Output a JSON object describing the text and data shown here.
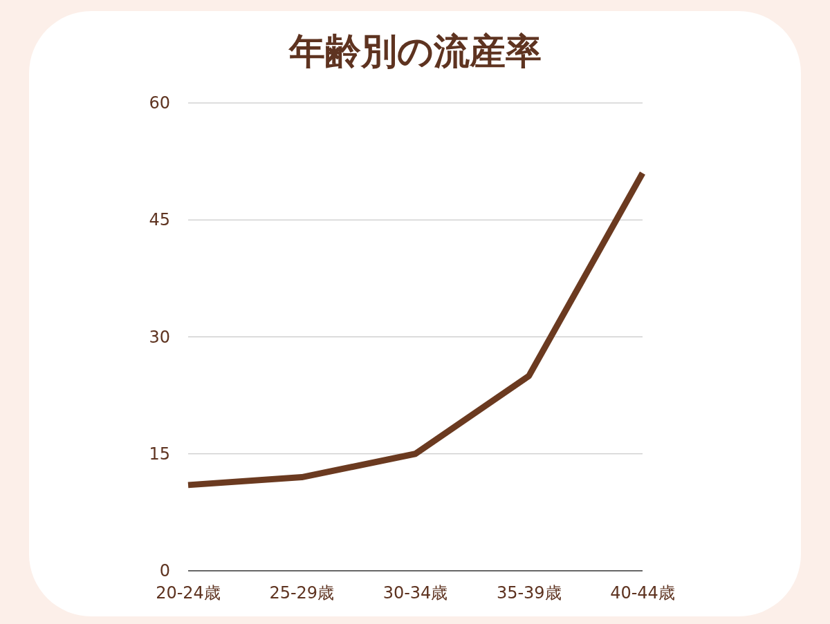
{
  "chart_data": {
    "type": "line",
    "title": "年齢別の流産率",
    "categories": [
      "20-24歳",
      "25-29歳",
      "30-34歳",
      "35-39歳",
      "40-44歳"
    ],
    "series": [
      {
        "color": "#6b3a20",
        "values": [
          11,
          12,
          15,
          25,
          51
        ]
      }
    ],
    "ylim": [
      0,
      60
    ],
    "yticks": [
      0,
      15,
      30,
      45,
      60
    ],
    "grid": "y"
  }
}
